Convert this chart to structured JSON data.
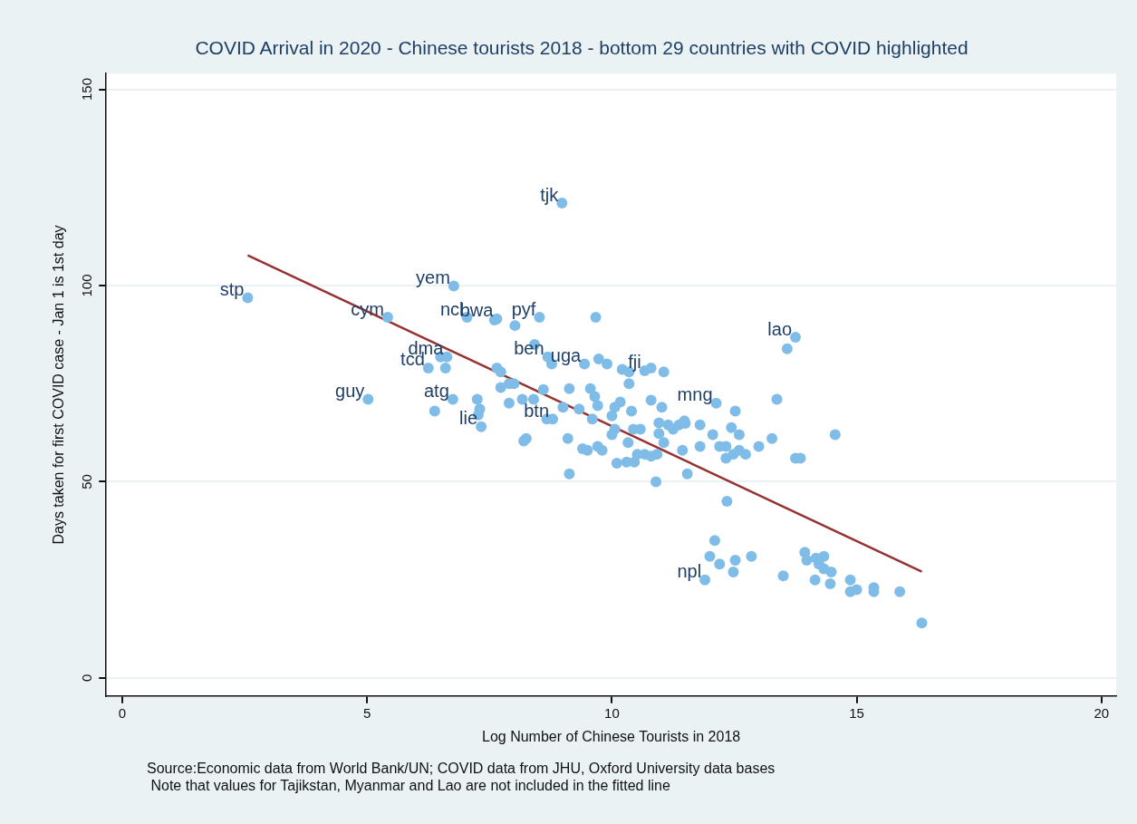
{
  "chart_data": {
    "type": "scatter",
    "title": "COVID Arrival in 2020 - Chinese tourists 2018 - bottom 29 countries with COVID highlighted",
    "xlabel": "Log Number of Chinese Tourists in 2018",
    "ylabel": "Days taken for first COVID case - Jan 1 is 1st day",
    "xlim": [
      -0.33,
      20.3
    ],
    "xticks": [
      0,
      5,
      10,
      15,
      20
    ],
    "ylim": [
      -4.6,
      154
    ],
    "yticks": [
      0,
      50,
      100,
      150
    ],
    "grid": "y",
    "legend": false,
    "marker": "circle",
    "series": [
      {
        "color": "#7fbde8",
        "x": [
          2.56,
          5.42,
          6.77,
          8.98,
          7.04,
          7.6,
          7.65,
          8.02,
          8.52,
          9.67,
          13.75,
          13.58,
          5.02,
          6.75,
          6.38,
          7.27,
          6.5,
          6.63,
          6.25,
          6.6,
          7.25,
          7.3,
          7.33,
          7.65,
          7.73,
          7.73,
          7.9,
          8.0,
          7.9,
          8.17,
          8.4,
          8.2,
          8.25,
          8.42,
          8.69,
          8.77,
          8.67,
          8.79,
          8.6,
          9.13,
          9.0,
          9.1,
          9.13,
          9.33,
          9.4,
          9.5,
          9.44,
          9.56,
          9.65,
          9.71,
          9.6,
          9.71,
          9.8,
          9.9,
          9.73,
          10.0,
          10.06,
          10.0,
          10.06,
          10.1,
          10.3,
          10.46,
          10.17,
          10.21,
          10.35,
          10.35,
          10.4,
          10.33,
          10.44,
          10.58,
          10.52,
          10.67,
          10.8,
          10.67,
          10.8,
          11.06,
          10.8,
          10.9,
          10.92,
          11.02,
          10.96,
          10.96,
          11.15,
          11.06,
          11.25,
          11.37,
          11.48,
          11.44,
          11.54,
          11.5,
          11.8,
          11.8,
          12.13,
          12.06,
          12.2,
          12.33,
          12.33,
          12.35,
          12.44,
          12.52,
          12.6,
          12.48,
          12.6,
          12.73,
          13.0,
          13.27,
          13.37,
          13.75,
          13.85,
          14.56,
          12.1,
          12.0,
          11.9,
          12.2,
          12.48,
          12.52,
          12.85,
          13.5,
          13.94,
          13.98,
          14.17,
          14.23,
          14.33,
          14.15,
          14.33,
          14.48,
          14.46,
          14.87,
          14.87,
          15.0,
          15.35,
          15.35,
          15.88,
          16.33
        ],
        "values": [
          96.9,
          91.9,
          99.9,
          121,
          91.9,
          91.2,
          91.5,
          89.8,
          91.9,
          91.9,
          86.8,
          83.9,
          71,
          71,
          68,
          67,
          81.8,
          81.8,
          79,
          79,
          71,
          68.5,
          64,
          79,
          78,
          74,
          75,
          75,
          70,
          71,
          71,
          60.4,
          61,
          85,
          81.8,
          80,
          66,
          66,
          73.5,
          73.7,
          69,
          61,
          52,
          68.5,
          58.4,
          58,
          80,
          73.7,
          71.7,
          69.4,
          66,
          59,
          58,
          80,
          81.3,
          66.8,
          69,
          62,
          63.4,
          54.7,
          55,
          55,
          70.3,
          78.6,
          78,
          75,
          68,
          60,
          63.4,
          63.4,
          57,
          57,
          56.5,
          78.3,
          79,
          78,
          70.8,
          50,
          57,
          69,
          65,
          62.3,
          64.5,
          60,
          63.4,
          64.5,
          65.5,
          58,
          52,
          64.9,
          64.5,
          59,
          70,
          62,
          59,
          59,
          56,
          45,
          63.8,
          68,
          62,
          57,
          58,
          57,
          59,
          61,
          71,
          56,
          56,
          62,
          35,
          31,
          25,
          29,
          27,
          30,
          31,
          26,
          32,
          30,
          30.5,
          29,
          27.8,
          25,
          31,
          27,
          24,
          25,
          22,
          22.5,
          23,
          22,
          22,
          14
        ]
      },
      {
        "type": "line",
        "marker": "none",
        "color": "#973232",
        "x": [
          2.56,
          16.33
        ],
        "values": [
          107.7,
          27.1
        ]
      }
    ],
    "annotations": [
      {
        "text": "stp",
        "x": 2.56,
        "y": 96.9
      },
      {
        "text": "cym",
        "x": 5.42,
        "y": 91.9
      },
      {
        "text": "yem",
        "x": 6.77,
        "y": 99.9
      },
      {
        "text": "tjk",
        "x": 8.98,
        "y": 121
      },
      {
        "text": "ncl",
        "x": 7.04,
        "y": 91.9
      },
      {
        "text": "bwa",
        "x": 7.65,
        "y": 91.5
      },
      {
        "text": "pyf",
        "x": 8.52,
        "y": 91.9
      },
      {
        "text": "lao",
        "x": 13.75,
        "y": 86.8
      },
      {
        "text": "guy",
        "x": 5.02,
        "y": 71
      },
      {
        "text": "atg",
        "x": 6.75,
        "y": 71
      },
      {
        "text": "lie",
        "x": 7.33,
        "y": 64
      },
      {
        "text": "btn",
        "x": 8.79,
        "y": 66
      },
      {
        "text": "fji",
        "x": 10.67,
        "y": 78.3
      },
      {
        "text": "mng",
        "x": 12.13,
        "y": 70
      },
      {
        "text": "npl",
        "x": 11.9,
        "y": 25
      },
      {
        "text": "dma",
        "x": 6.63,
        "y": 81.8
      },
      {
        "text": "tcd",
        "x": 6.25,
        "y": 79
      },
      {
        "text": "ben",
        "x": 8.69,
        "y": 81.8
      },
      {
        "text": "uga",
        "x": 9.44,
        "y": 80
      },
      "Source:Economic data from World Bank/UN; COVID data from JHU, Oxford University data bases",
      " Note that values for Tajikstan, Myanmar and Lao are not included in the fitted line"
    ]
  }
}
